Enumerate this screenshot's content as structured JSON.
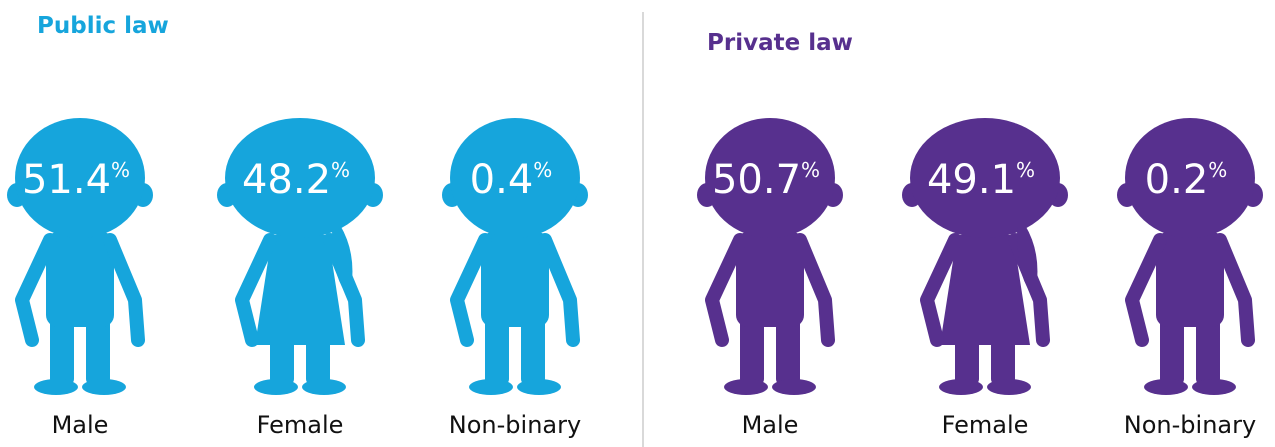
{
  "panels": [
    {
      "title": "Public law",
      "color": "#16a5dc",
      "unit": "%",
      "figures": [
        {
          "value": 51.4,
          "label": "Male"
        },
        {
          "value": 48.2,
          "label": "Female"
        },
        {
          "value": 0.4,
          "label": "Non-binary"
        }
      ]
    },
    {
      "title": "Private law",
      "color": "#57308e",
      "unit": "%",
      "figures": [
        {
          "value": 50.7,
          "label": "Male"
        },
        {
          "value": 49.1,
          "label": "Female"
        },
        {
          "value": 0.2,
          "label": "Non-binary"
        }
      ]
    }
  ]
}
